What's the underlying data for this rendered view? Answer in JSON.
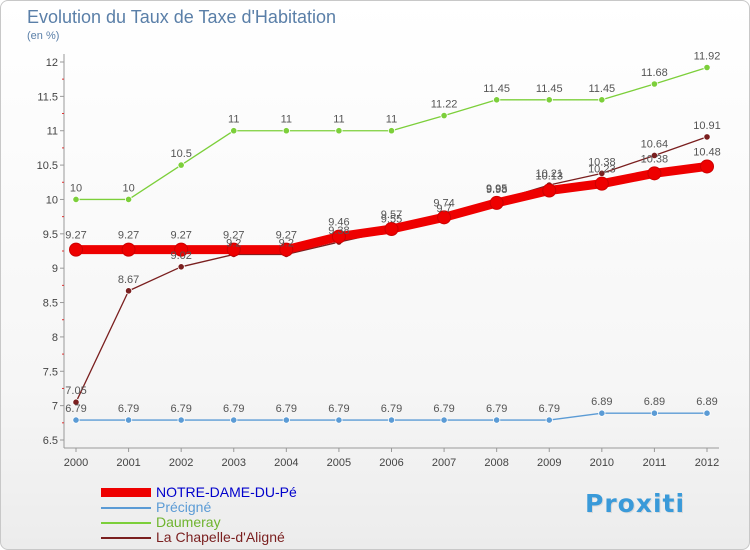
{
  "title": "Evolution du Taux de Taxe d'Habitation",
  "subtitle": "(en %)",
  "brand": "Proxiti",
  "chart_data": {
    "type": "line",
    "title": "Evolution du Taux de Taxe d'Habitation",
    "subtitle": "(en %)",
    "xlabel": "",
    "ylabel": "",
    "ylim": [
      6.5,
      12
    ],
    "yticks": [
      6.5,
      7,
      7.5,
      8,
      8.5,
      9,
      9.5,
      10,
      10.5,
      11,
      11.5,
      12
    ],
    "grid": false,
    "legend_position": "bottom-left",
    "x": [
      "2000",
      "2001",
      "2002",
      "2003",
      "2004",
      "2005",
      "2006",
      "2007",
      "2008",
      "2009",
      "2010",
      "2011",
      "2012"
    ],
    "series": [
      {
        "name": "NOTRE-DAME-DU-Pé",
        "color": "#ee0000",
        "values": [
          9.27,
          9.27,
          9.27,
          9.27,
          9.27,
          9.46,
          9.57,
          9.74,
          9.95,
          10.13,
          10.23,
          10.38,
          10.48
        ]
      },
      {
        "name": "Précigné",
        "color": "#5b9bd5",
        "values": [
          6.79,
          6.79,
          6.79,
          6.79,
          6.79,
          6.79,
          6.79,
          6.79,
          6.79,
          6.79,
          6.89,
          6.89,
          6.89
        ]
      },
      {
        "name": "Daumeray",
        "color": "#7ccf3a",
        "values": [
          10,
          10,
          10.5,
          11,
          11,
          11,
          11,
          11.22,
          11.45,
          11.45,
          11.45,
          11.68,
          11.92
        ]
      },
      {
        "name": "La Chapelle-d'Aligné",
        "color": "#7a1f1f",
        "values": [
          7.05,
          8.67,
          9.02,
          9.2,
          9.2,
          9.38,
          9.55,
          9.7,
          9.98,
          10.21,
          10.38,
          10.64,
          10.91
        ]
      }
    ]
  }
}
